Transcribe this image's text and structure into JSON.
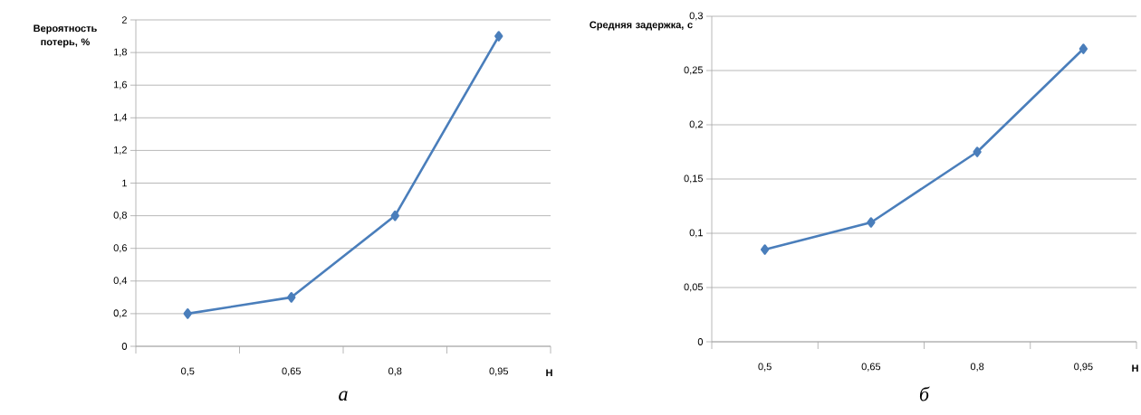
{
  "chart_data": [
    {
      "type": "line",
      "ylabel": "Вероятность потерь, %",
      "xlabel": "Н",
      "annotations": [
        "а"
      ],
      "categories": [
        "0,5",
        "0,65",
        "0,8",
        "0,95"
      ],
      "values": [
        0.2,
        0.3,
        0.8,
        1.9
      ],
      "color": "#4a7ebb",
      "marker": "diamond",
      "grid": "y",
      "ylim": [
        0,
        2
      ],
      "yticks": [
        0,
        {
          "value": 0.2,
          "label": "0,2"
        },
        {
          "value": 0.4,
          "label": "0,4"
        },
        {
          "value": 0.6,
          "label": "0,6"
        },
        {
          "value": 0.8,
          "label": "0,8"
        },
        1,
        {
          "value": 1.2,
          "label": "1,2"
        },
        {
          "value": 1.4,
          "label": "1,4"
        },
        {
          "value": 1.6,
          "label": "1,6"
        },
        {
          "value": 1.8,
          "label": "1,8"
        },
        2
      ]
    },
    {
      "type": "line",
      "ylabel": "Средняя задержка, с",
      "xlabel": "Н",
      "annotations": [
        "б"
      ],
      "categories": [
        "0,5",
        "0,65",
        "0,8",
        "0,95"
      ],
      "values": [
        0.085,
        0.11,
        0.175,
        0.27
      ],
      "color": "#4a7ebb",
      "marker": "diamond",
      "grid": "y",
      "ylim": [
        0,
        0.3
      ],
      "yticks": [
        0,
        {
          "value": 0.05,
          "label": "0,05"
        },
        {
          "value": 0.1,
          "label": "0,1"
        },
        {
          "value": 0.15,
          "label": "0,15"
        },
        {
          "value": 0.2,
          "label": "0,2"
        },
        {
          "value": 0.25,
          "label": "0,25"
        },
        {
          "value": 0.3,
          "label": "0,3"
        }
      ]
    }
  ]
}
